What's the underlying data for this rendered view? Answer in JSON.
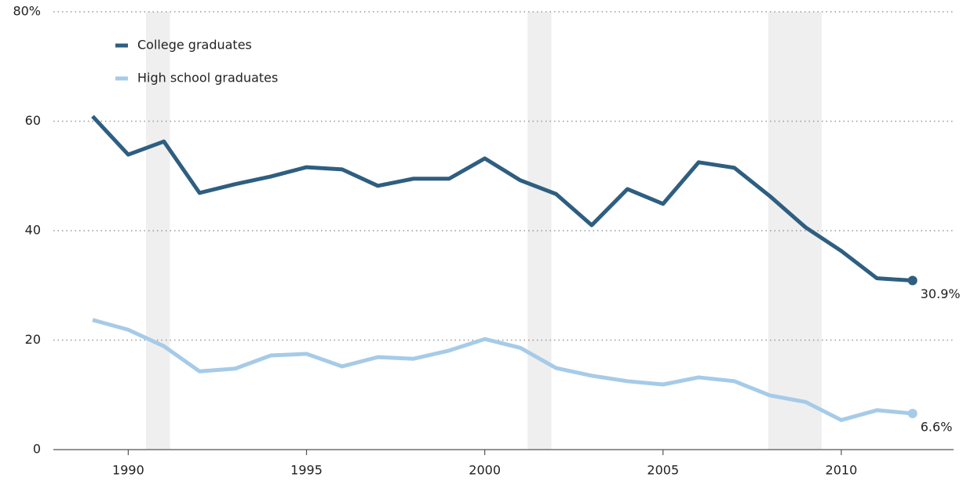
{
  "chart_data": {
    "type": "line",
    "x": [
      1989,
      1990,
      1991,
      1992,
      1993,
      1994,
      1995,
      1996,
      1997,
      1998,
      1999,
      2000,
      2001,
      2002,
      2003,
      2004,
      2005,
      2006,
      2007,
      2008,
      2009,
      2010,
      2011,
      2012
    ],
    "series": [
      {
        "name": "College graduates",
        "color": "#2e5e80",
        "values": [
          60.9,
          53.9,
          56.3,
          46.9,
          48.5,
          49.9,
          51.6,
          51.2,
          48.2,
          49.5,
          49.5,
          53.2,
          49.2,
          46.7,
          41.0,
          47.6,
          44.9,
          52.5,
          51.5,
          46.3,
          40.6,
          36.3,
          31.3,
          30.9
        ],
        "value_labels": [
          null,
          null,
          null,
          null,
          null,
          null,
          null,
          null,
          null,
          null,
          null,
          null,
          null,
          null,
          null,
          null,
          null,
          null,
          null,
          null,
          null,
          null,
          null,
          "30.9%"
        ]
      },
      {
        "name": "High school graduates",
        "color": "#a6cbe8",
        "values": [
          23.7,
          21.9,
          18.9,
          14.3,
          14.8,
          17.2,
          17.5,
          15.2,
          16.9,
          16.6,
          18.1,
          20.2,
          18.6,
          14.9,
          13.5,
          12.5,
          11.9,
          13.2,
          12.5,
          9.9,
          8.7,
          5.4,
          7.2,
          6.6
        ],
        "value_labels": [
          null,
          null,
          null,
          null,
          null,
          null,
          null,
          null,
          null,
          null,
          null,
          null,
          null,
          null,
          null,
          null,
          null,
          null,
          null,
          null,
          null,
          null,
          null,
          "6.6%"
        ]
      }
    ],
    "shaded_ranges": [
      [
        1990.5,
        1991.17
      ],
      [
        2001.2,
        2001.87
      ],
      [
        2007.95,
        2009.45
      ]
    ],
    "xlim": [
      1987.9,
      2013.15
    ],
    "xticks": [
      1990,
      1995,
      2000,
      2005,
      2010
    ],
    "ylim": [
      0,
      80
    ],
    "yticks": [
      0,
      20,
      40,
      60,
      {
        "value": 80,
        "label": "80%"
      }
    ],
    "grid": true
  }
}
